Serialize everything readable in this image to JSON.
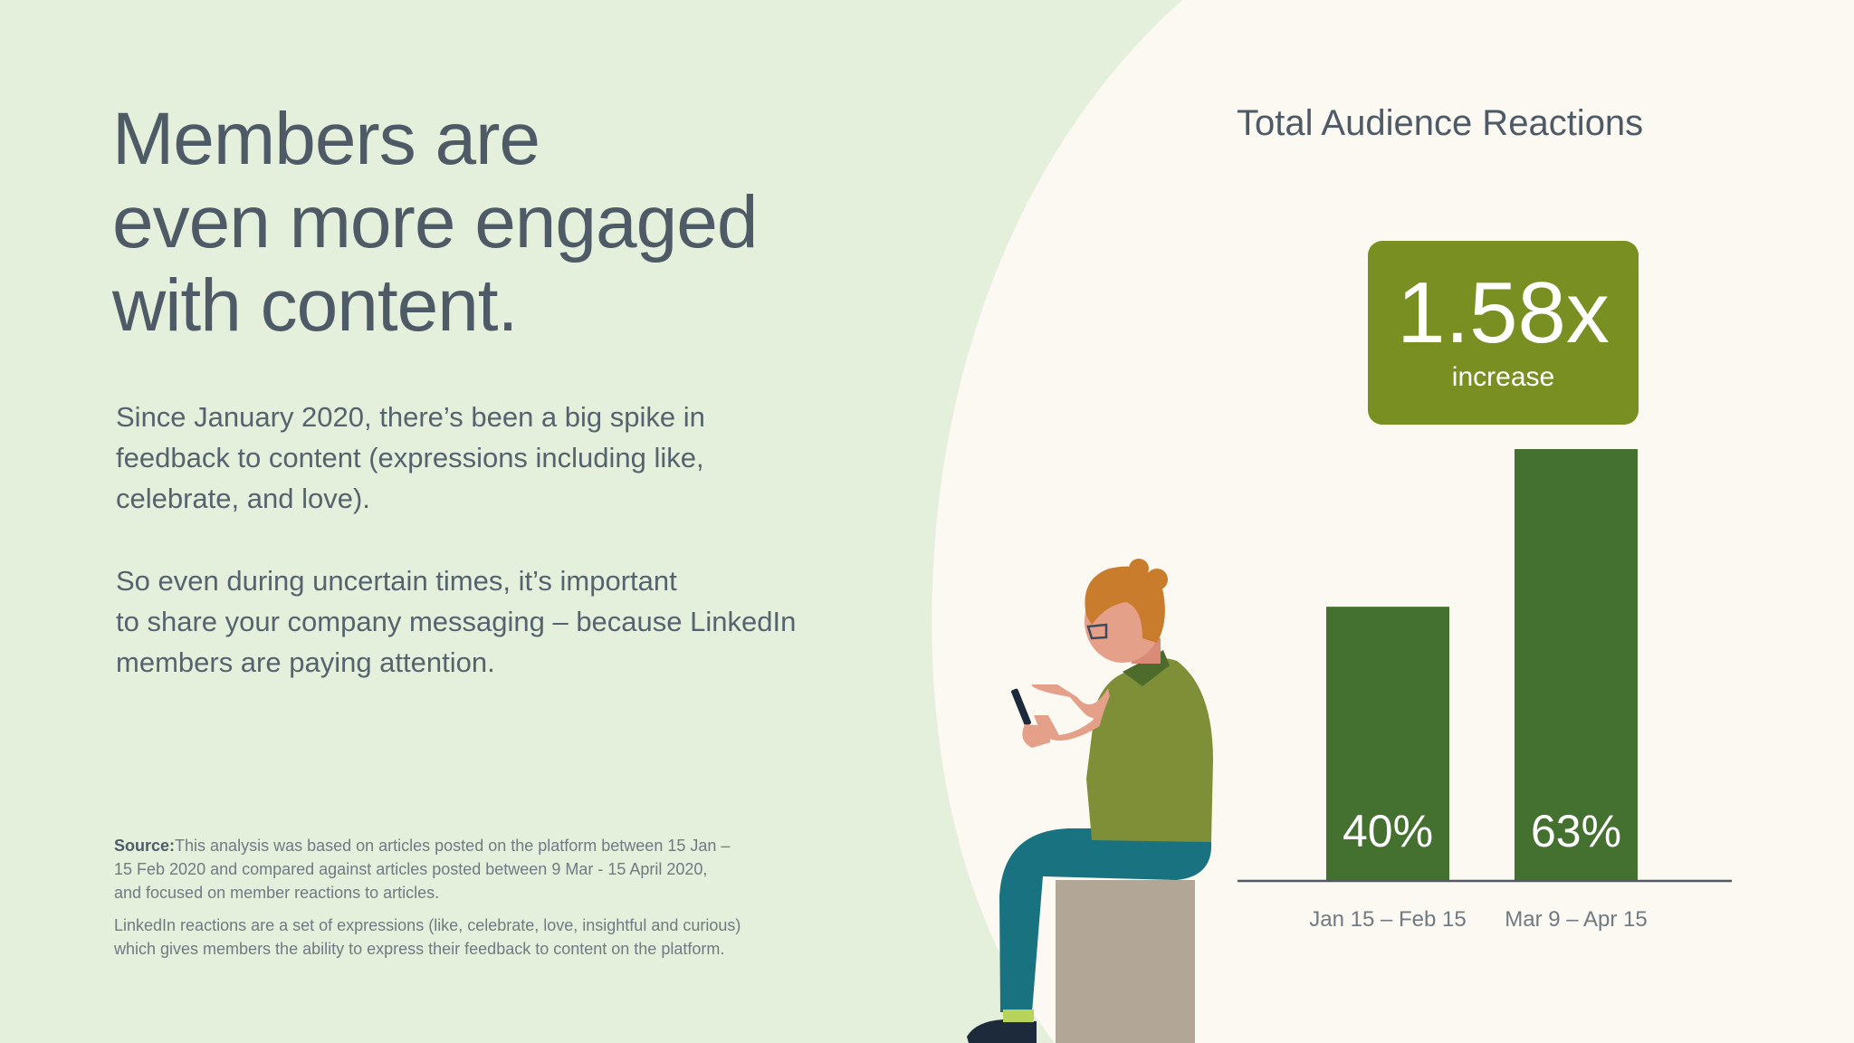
{
  "headline": [
    "Members are",
    "even more engaged",
    "with content."
  ],
  "paragraph1": [
    "Since January 2020, there’s been a big spike in",
    "feedback to content (expressions including like,",
    "celebrate, and love)."
  ],
  "paragraph2": [
    "So even during uncertain times, it’s important",
    "to share your company messaging – because LinkedIn",
    "members are paying attention."
  ],
  "source": {
    "label": "Source:",
    "lines": [
      "This analysis was based on articles posted on the platform between 15 Jan –",
      "15 Feb 2020 and compared against articles posted between 9 Mar - 15 April 2020,",
      "and focused on member reactions to articles."
    ],
    "note": [
      "LinkedIn reactions are a set of expressions (like, celebrate, love, insightful and curious)",
      "which gives members the ability to express their feedback to content on the platform."
    ]
  },
  "callout": {
    "value": "1.58x",
    "label": "increase"
  },
  "colors": {
    "background": "#e4f0dc",
    "panel": "#fbf9f2",
    "bar": "#447030",
    "callout": "#7a8f22",
    "text": "#4e5b66"
  },
  "chart_data": {
    "type": "bar",
    "title": "Total Audience Reactions",
    "categories": [
      "Jan 15 – Feb 15",
      "Mar 9 – Apr 15"
    ],
    "values": [
      40,
      63
    ],
    "value_labels": [
      "40%",
      "63%"
    ],
    "ylim": [
      0,
      73
    ],
    "xlabel": "",
    "ylabel": "",
    "grid": false
  }
}
